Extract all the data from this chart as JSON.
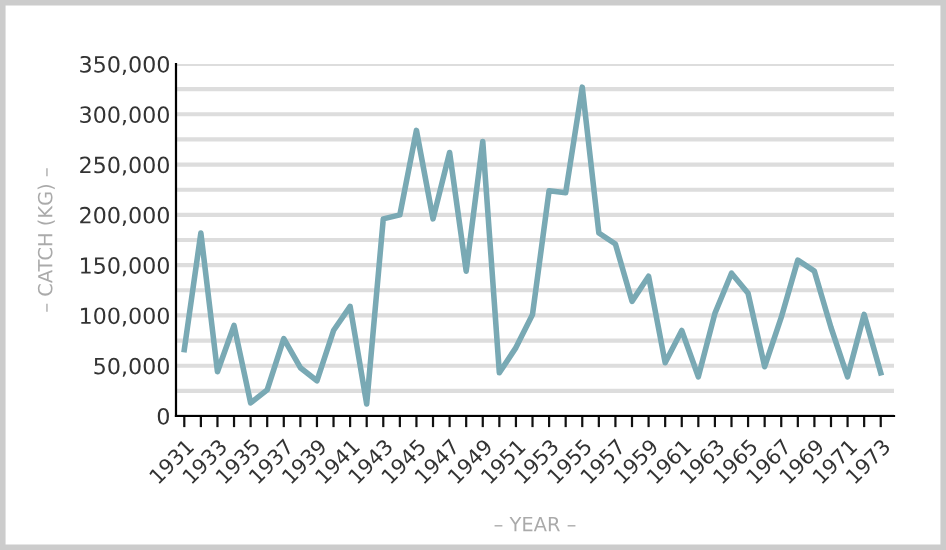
{
  "chart_data": {
    "type": "line",
    "xlabel": "– YEAR –",
    "ylabel": "– CATCH (KG) –",
    "x": [
      1931,
      1932,
      1933,
      1934,
      1935,
      1936,
      1937,
      1938,
      1939,
      1940,
      1941,
      1942,
      1943,
      1944,
      1945,
      1946,
      1947,
      1948,
      1949,
      1950,
      1951,
      1952,
      1953,
      1954,
      1955,
      1956,
      1957,
      1958,
      1959,
      1960,
      1961,
      1962,
      1963,
      1964,
      1965,
      1966,
      1967,
      1968,
      1969,
      1970,
      1971,
      1972,
      1973
    ],
    "series": [
      {
        "color": "#79a9b4",
        "values": [
          66000,
          182000,
          44000,
          90000,
          13000,
          26000,
          77000,
          48000,
          35000,
          85000,
          109000,
          12000,
          196000,
          200000,
          284000,
          196000,
          262000,
          144000,
          273000,
          43000,
          68000,
          101000,
          224000,
          222000,
          327000,
          182000,
          171000,
          114000,
          139000,
          53000,
          85000,
          39000,
          102000,
          142000,
          122000,
          49000,
          98000,
          155000,
          144000,
          88000,
          39000,
          101000,
          43000
        ]
      }
    ],
    "xlim": [
      1930.5,
      1973.8
    ],
    "xticks": [
      1931,
      {
        "value": 1932,
        "label": null
      },
      1933,
      {
        "value": 1934,
        "label": null
      },
      1935,
      {
        "value": 1936,
        "label": null
      },
      1937,
      {
        "value": 1938,
        "label": null
      },
      1939,
      {
        "value": 1940,
        "label": null
      },
      1941,
      {
        "value": 1942,
        "label": null
      },
      1943,
      {
        "value": 1944,
        "label": null
      },
      1945,
      {
        "value": 1946,
        "label": null
      },
      1947,
      {
        "value": 1948,
        "label": null
      },
      1949,
      {
        "value": 1950,
        "label": null
      },
      1951,
      {
        "value": 1952,
        "label": null
      },
      1953,
      {
        "value": 1954,
        "label": null
      },
      1955,
      {
        "value": 1956,
        "label": null
      },
      1957,
      {
        "value": 1958,
        "label": null
      },
      1959,
      {
        "value": 1960,
        "label": null
      },
      1961,
      {
        "value": 1962,
        "label": null
      },
      1963,
      {
        "value": 1964,
        "label": null
      },
      1965,
      {
        "value": 1966,
        "label": null
      },
      1967,
      {
        "value": 1968,
        "label": null
      },
      1969,
      {
        "value": 1970,
        "label": null
      },
      1971,
      {
        "value": 1972,
        "label": null
      },
      1973
    ],
    "ylim": [
      0,
      350000
    ],
    "yticks": [
      {
        "value": 0,
        "label": "0"
      },
      {
        "value": 25000,
        "label": null
      },
      {
        "value": 50000,
        "label": "50,000"
      },
      {
        "value": 75000,
        "label": null
      },
      {
        "value": 100000,
        "label": "100,000"
      },
      {
        "value": 125000,
        "label": null
      },
      {
        "value": 150000,
        "label": "150,000"
      },
      {
        "value": 175000,
        "label": null
      },
      {
        "value": 200000,
        "label": "200,000"
      },
      {
        "value": 225000,
        "label": null
      },
      {
        "value": 250000,
        "label": "250,000"
      },
      {
        "value": 275000,
        "label": null
      },
      {
        "value": 300000,
        "label": "300,000"
      },
      {
        "value": 325000,
        "label": null
      },
      {
        "value": 350000,
        "label": "350,000"
      }
    ],
    "grid": "y",
    "marker": "none",
    "line_style": "solid"
  }
}
